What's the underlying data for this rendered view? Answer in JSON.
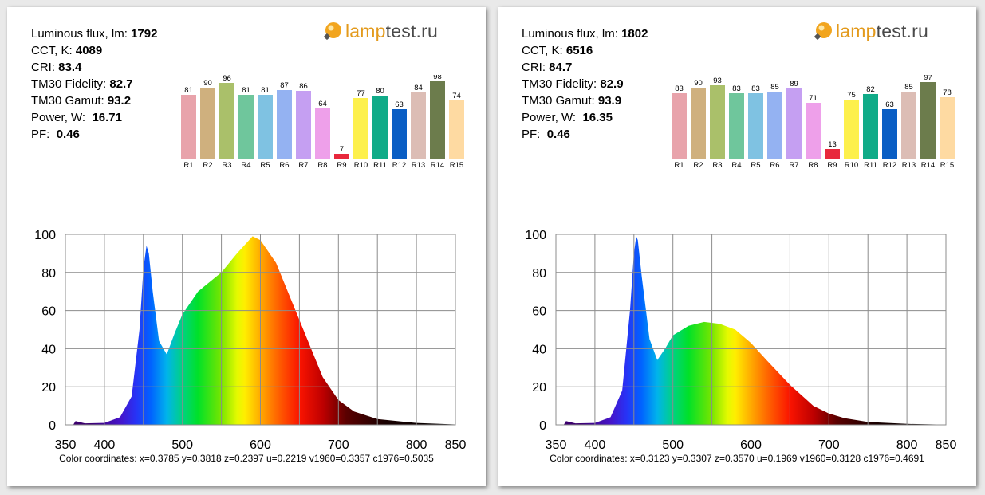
{
  "brand": {
    "prefix": "lamp",
    "suffix": "test.ru"
  },
  "cards": [
    {
      "flux_label": "Luminous flux, lm:",
      "flux": "1792",
      "cct_label": "CCT, K:",
      "cct": "4089",
      "cri_label": "CRI:",
      "cri": "83.4",
      "tmf_label": "TM30 Fidelity:",
      "tmf": "82.7",
      "tmg_label": "TM30 Gamut:",
      "tmg": "93.2",
      "power_label": "Power, W:",
      "power": "16.71",
      "pf_label": "PF:",
      "pf": "0.46",
      "coords": "Color coordinates: x=0.3785 y=0.3818 z=0.2397 u=0.2219 v1960=0.3357 c1976=0.5035"
    },
    {
      "flux_label": "Luminous flux, lm:",
      "flux": "1802",
      "cct_label": "CCT, K:",
      "cct": "6516",
      "cri_label": "CRI:",
      "cri": "84.7",
      "tmf_label": "TM30 Fidelity:",
      "tmf": "82.9",
      "tmg_label": "TM30 Gamut:",
      "tmg": "93.9",
      "power_label": "Power, W:",
      "power": "16.35",
      "pf_label": "PF:",
      "pf": "0.46",
      "coords": "Color coordinates: x=0.3123 y=0.3307 z=0.3570 u=0.1969 v1960=0.3128 c1976=0.4691"
    }
  ],
  "chart_data": [
    {
      "type": "bar",
      "categories": [
        "R1",
        "R2",
        "R3",
        "R4",
        "R5",
        "R6",
        "R7",
        "R8",
        "R9",
        "R10",
        "R11",
        "R12",
        "R13",
        "R14",
        "R15"
      ],
      "values": [
        81,
        90,
        96,
        81,
        81,
        87,
        86,
        64,
        7,
        77,
        80,
        63,
        84,
        98,
        74
      ],
      "colors": [
        "#e8a3ab",
        "#cfb07e",
        "#aac06a",
        "#6fc69c",
        "#7fc2e2",
        "#94b2f2",
        "#c59ff2",
        "#eea0ea",
        "#e8283c",
        "#fdf04c",
        "#10ab88",
        "#0a5ec4",
        "#dcbdb5",
        "#6c7c4c",
        "#fedaa2"
      ],
      "ylim": [
        0,
        100
      ]
    },
    {
      "type": "area",
      "x": [
        350,
        360,
        363,
        375,
        400,
        420,
        435,
        445,
        450,
        454,
        457,
        462,
        470,
        480,
        490,
        500,
        520,
        550,
        570,
        590,
        600,
        620,
        650,
        680,
        700,
        720,
        750,
        800,
        850
      ],
      "values": [
        0,
        0,
        2,
        0.8,
        1,
        4,
        15,
        50,
        82,
        94,
        90,
        70,
        44,
        37,
        48,
        58,
        70,
        80,
        90,
        99,
        97,
        85,
        55,
        25,
        13,
        7,
        3,
        1,
        0.2
      ],
      "xlim": [
        350,
        850
      ],
      "ylim": [
        0,
        100
      ],
      "xticks": [
        350,
        400,
        500,
        600,
        700,
        800,
        850
      ],
      "yticks": [
        0,
        20,
        40,
        60,
        80,
        100
      ]
    },
    {
      "type": "bar",
      "categories": [
        "R1",
        "R2",
        "R3",
        "R4",
        "R5",
        "R6",
        "R7",
        "R8",
        "R9",
        "R10",
        "R11",
        "R12",
        "R13",
        "R14",
        "R15"
      ],
      "values": [
        83,
        90,
        93,
        83,
        83,
        85,
        89,
        71,
        13,
        75,
        82,
        63,
        85,
        97,
        78
      ],
      "colors": [
        "#e8a3ab",
        "#cfb07e",
        "#aac06a",
        "#6fc69c",
        "#7fc2e2",
        "#94b2f2",
        "#c59ff2",
        "#eea0ea",
        "#e8283c",
        "#fdf04c",
        "#10ab88",
        "#0a5ec4",
        "#dcbdb5",
        "#6c7c4c",
        "#fedaa2"
      ],
      "ylim": [
        0,
        100
      ]
    },
    {
      "type": "area",
      "x": [
        350,
        360,
        363,
        375,
        400,
        420,
        435,
        445,
        450,
        453,
        455,
        460,
        470,
        480,
        490,
        500,
        520,
        540,
        560,
        580,
        600,
        620,
        650,
        680,
        700,
        720,
        750,
        800,
        850
      ],
      "values": [
        0,
        0,
        2,
        0.8,
        1,
        4,
        18,
        60,
        90,
        99,
        97,
        78,
        45,
        34,
        40,
        47,
        52,
        54,
        53,
        50,
        43,
        34,
        21,
        10,
        6,
        3.5,
        1.5,
        0.5,
        0.1
      ],
      "xlim": [
        350,
        850
      ],
      "ylim": [
        0,
        100
      ],
      "xticks": [
        350,
        400,
        500,
        600,
        700,
        800,
        850
      ],
      "yticks": [
        0,
        20,
        40,
        60,
        80,
        100
      ]
    }
  ]
}
